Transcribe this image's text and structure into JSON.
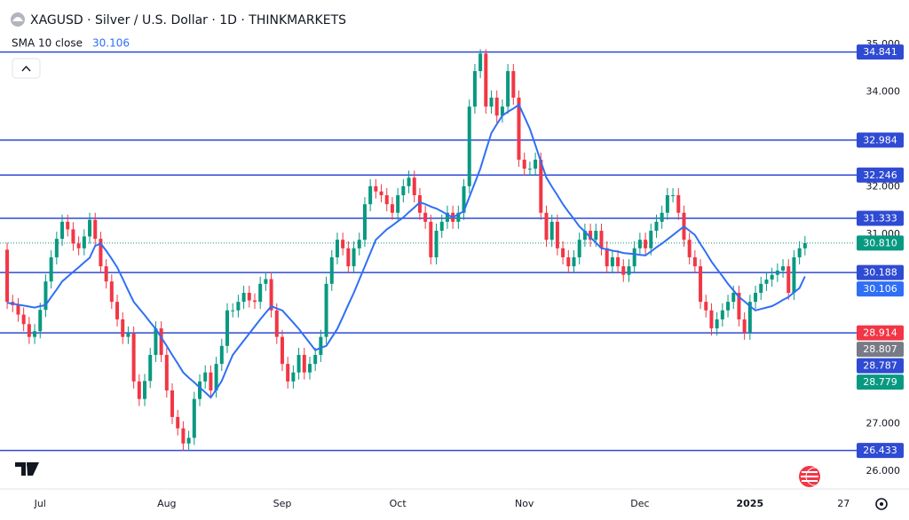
{
  "chart_data": {
    "type": "candlestick",
    "title": "XAGUSD · Silver / U.S. Dollar · 1D · THINKMARKETS",
    "indicator": {
      "name": "SMA 10 close",
      "color": "#2f6ff5",
      "values": [
        29.55,
        29.53,
        29.51,
        29.49,
        29.47,
        29.45,
        29.48,
        29.5,
        29.67,
        29.83,
        30.0,
        30.1,
        30.2,
        30.3,
        30.4,
        30.5,
        30.75,
        30.8,
        30.65,
        30.48,
        30.3,
        30.06,
        29.81,
        29.57,
        29.43,
        29.29,
        29.14,
        29.0,
        28.82,
        28.64,
        28.45,
        28.27,
        28.08,
        27.97,
        27.87,
        27.76,
        27.66,
        27.55,
        27.72,
        27.9,
        28.18,
        28.45,
        28.6,
        28.75,
        28.9,
        29.05,
        29.2,
        29.34,
        29.48,
        29.43,
        29.39,
        29.26,
        29.13,
        29.0,
        28.85,
        28.7,
        28.55,
        28.6,
        28.64,
        28.82,
        29.0,
        29.25,
        29.51,
        29.76,
        30.04,
        30.32,
        30.6,
        30.88,
        30.99,
        31.1,
        31.18,
        31.27,
        31.35,
        31.46,
        31.56,
        31.67,
        31.63,
        31.58,
        31.54,
        31.48,
        31.41,
        31.35,
        31.42,
        31.48,
        31.78,
        32.08,
        32.38,
        32.76,
        33.13,
        33.32,
        33.5,
        33.58,
        33.65,
        33.73,
        33.48,
        33.22,
        32.88,
        32.53,
        32.19,
        32.0,
        31.82,
        31.63,
        31.47,
        31.32,
        31.16,
        31.05,
        30.93,
        30.82,
        30.7,
        30.68,
        30.65,
        30.63,
        30.6,
        30.59,
        30.58,
        30.56,
        30.55,
        30.63,
        30.72,
        30.8,
        30.89,
        30.98,
        31.07,
        31.16,
        31.07,
        30.98,
        30.79,
        30.61,
        30.42,
        30.26,
        30.11,
        29.95,
        29.81,
        29.67,
        29.58,
        29.48,
        29.39,
        29.42,
        29.45,
        29.48,
        29.54,
        29.61,
        29.67,
        29.77,
        29.86,
        30.106
      ]
    },
    "up_color": "#089981",
    "down_color": "#f23645",
    "open": [
      30.67,
      29.57,
      29.5,
      29.3,
      29.1,
      28.83,
      28.95,
      29.4,
      30.0,
      30.51,
      30.9,
      31.26,
      31.1,
      30.8,
      30.7,
      30.95,
      31.3,
      30.9,
      30.32,
      30.0,
      29.57,
      29.2,
      28.83,
      28.9,
      27.89,
      27.52,
      27.9,
      28.45,
      29.01,
      28.45,
      27.7,
      27.14,
      26.9,
      26.58,
      26.7,
      27.52,
      27.89,
      28.08,
      27.7,
      28.26,
      28.64,
      29.39,
      29.39,
      29.57,
      29.76,
      29.6,
      29.57,
      29.95,
      30.05,
      29.39,
      28.83,
      28.26,
      27.89,
      28.08,
      28.45,
      28.08,
      28.26,
      28.45,
      28.83,
      29.95,
      30.51,
      30.88,
      30.7,
      30.32,
      30.7,
      30.88,
      31.63,
      32.01,
      31.9,
      31.82,
      31.63,
      31.45,
      31.82,
      32.01,
      32.19,
      31.82,
      31.45,
      31.26,
      30.51,
      31.07,
      31.26,
      31.45,
      31.26,
      31.45,
      32.01,
      33.69,
      34.44,
      34.81,
      33.69,
      33.88,
      33.5,
      33.69,
      34.44,
      33.88,
      32.57,
      32.38,
      32.38,
      32.57,
      31.45,
      30.88,
      31.26,
      30.7,
      30.51,
      30.32,
      30.51,
      30.88,
      31.07,
      30.88,
      31.07,
      30.7,
      30.32,
      30.51,
      30.32,
      30.14,
      30.32,
      30.7,
      30.88,
      30.7,
      31.07,
      31.26,
      31.45,
      31.82,
      31.82,
      31.45,
      30.88,
      30.51,
      30.32,
      29.57,
      29.39,
      29.01,
      29.2,
      29.39,
      29.57,
      29.76,
      29.2,
      28.92,
      29.57,
      29.76,
      29.95,
      30.04,
      30.14,
      30.23,
      30.32,
      29.76,
      30.51,
      30.7
    ],
    "high": [
      30.82,
      29.72,
      29.65,
      29.45,
      29.25,
      29.1,
      29.55,
      30.15,
      30.66,
      31.05,
      31.41,
      31.41,
      31.25,
      30.95,
      31.1,
      31.45,
      31.45,
      31.05,
      30.47,
      30.15,
      29.72,
      29.35,
      29.05,
      29.05,
      28.04,
      28.05,
      28.6,
      29.16,
      29.16,
      28.6,
      27.85,
      27.29,
      27.05,
      26.85,
      27.67,
      28.04,
      28.23,
      28.23,
      28.41,
      28.79,
      29.54,
      29.54,
      29.72,
      29.91,
      29.91,
      29.75,
      30.1,
      30.2,
      30.2,
      29.54,
      28.98,
      28.41,
      28.23,
      28.6,
      28.6,
      28.41,
      28.6,
      28.98,
      30.1,
      30.66,
      31.03,
      31.03,
      30.85,
      30.85,
      31.03,
      31.78,
      32.16,
      32.16,
      32.05,
      31.97,
      31.78,
      31.97,
      32.16,
      32.34,
      32.34,
      31.97,
      31.6,
      31.41,
      31.22,
      31.41,
      31.6,
      31.6,
      31.6,
      32.16,
      33.84,
      34.59,
      34.9,
      34.9,
      34.03,
      34.03,
      33.84,
      34.59,
      34.59,
      34.03,
      32.72,
      32.53,
      32.72,
      32.72,
      31.6,
      31.41,
      31.41,
      30.85,
      30.66,
      30.66,
      31.03,
      31.22,
      31.22,
      31.22,
      31.22,
      30.85,
      30.66,
      30.66,
      30.47,
      30.47,
      30.85,
      31.03,
      31.03,
      31.22,
      31.41,
      31.6,
      31.97,
      31.97,
      31.97,
      31.6,
      31.03,
      30.66,
      30.47,
      29.72,
      29.54,
      29.35,
      29.54,
      29.72,
      29.91,
      29.91,
      29.35,
      29.72,
      29.91,
      30.1,
      30.19,
      30.29,
      30.38,
      30.47,
      30.47,
      30.66,
      30.85,
      30.96
    ],
    "low": [
      29.42,
      29.35,
      29.15,
      28.95,
      28.68,
      28.68,
      28.8,
      29.25,
      29.85,
      30.36,
      30.75,
      30.95,
      30.65,
      30.55,
      30.55,
      30.8,
      30.75,
      30.17,
      29.85,
      29.42,
      29.05,
      28.68,
      28.68,
      27.74,
      27.37,
      27.37,
      27.75,
      28.3,
      28.3,
      27.55,
      26.99,
      26.75,
      26.43,
      26.43,
      26.55,
      27.37,
      27.74,
      27.55,
      27.55,
      28.11,
      28.49,
      29.24,
      29.24,
      29.42,
      29.45,
      29.42,
      29.42,
      29.8,
      29.24,
      28.68,
      28.11,
      27.74,
      27.74,
      27.93,
      27.93,
      27.93,
      28.11,
      28.3,
      28.68,
      29.8,
      30.36,
      30.55,
      30.17,
      30.17,
      30.55,
      30.73,
      31.48,
      31.75,
      31.67,
      31.48,
      31.3,
      31.3,
      31.67,
      31.86,
      31.67,
      31.3,
      31.11,
      30.36,
      30.36,
      30.92,
      31.11,
      31.11,
      31.11,
      31.3,
      31.86,
      33.54,
      34.29,
      33.54,
      33.54,
      33.35,
      33.35,
      33.54,
      33.73,
      32.42,
      32.23,
      32.23,
      32.23,
      31.3,
      30.73,
      30.73,
      30.55,
      30.36,
      30.17,
      30.17,
      30.36,
      30.73,
      30.73,
      30.73,
      30.55,
      30.17,
      30.17,
      30.17,
      29.99,
      29.99,
      30.17,
      30.55,
      30.55,
      30.55,
      30.92,
      31.11,
      31.3,
      31.67,
      31.3,
      30.73,
      30.36,
      30.17,
      29.42,
      29.24,
      28.86,
      28.86,
      29.05,
      29.24,
      29.42,
      29.05,
      28.77,
      28.77,
      29.42,
      29.61,
      29.8,
      29.89,
      29.99,
      30.08,
      29.61,
      29.61,
      30.36,
      30.55
    ],
    "close": [
      29.57,
      29.5,
      29.3,
      29.1,
      28.83,
      28.95,
      29.4,
      30.0,
      30.51,
      30.9,
      31.26,
      31.1,
      30.8,
      30.7,
      30.95,
      31.3,
      30.9,
      30.32,
      30.0,
      29.57,
      29.2,
      28.83,
      28.9,
      27.89,
      27.52,
      27.9,
      28.45,
      29.01,
      28.45,
      27.7,
      27.14,
      26.9,
      26.58,
      26.7,
      27.52,
      27.89,
      28.08,
      27.7,
      28.26,
      28.64,
      29.39,
      29.39,
      29.57,
      29.76,
      29.6,
      29.57,
      29.95,
      30.05,
      29.39,
      28.83,
      28.26,
      27.89,
      28.08,
      28.45,
      28.08,
      28.26,
      28.45,
      28.83,
      29.95,
      30.51,
      30.88,
      30.7,
      30.32,
      30.7,
      30.88,
      31.63,
      32.01,
      31.9,
      31.82,
      31.63,
      31.45,
      31.82,
      32.01,
      32.19,
      31.82,
      31.45,
      31.26,
      30.51,
      31.07,
      31.26,
      31.45,
      31.26,
      31.45,
      32.01,
      33.69,
      34.44,
      34.81,
      33.69,
      33.88,
      33.5,
      33.69,
      34.44,
      33.88,
      32.57,
      32.38,
      32.38,
      32.57,
      31.45,
      30.88,
      31.26,
      30.7,
      30.51,
      30.32,
      30.51,
      30.88,
      31.07,
      30.88,
      31.07,
      30.7,
      30.32,
      30.51,
      30.32,
      30.14,
      30.32,
      30.7,
      30.88,
      30.7,
      31.07,
      31.26,
      31.45,
      31.82,
      31.82,
      31.45,
      30.88,
      30.51,
      30.32,
      29.57,
      29.39,
      29.01,
      29.2,
      29.39,
      29.57,
      29.76,
      29.2,
      28.92,
      29.57,
      29.76,
      29.95,
      30.04,
      30.14,
      30.23,
      30.32,
      29.76,
      30.51,
      30.7,
      30.81
    ],
    "xlim": [
      -1.3,
      153.9
    ],
    "ylim": [
      25.64,
      35.94
    ],
    "grid": false,
    "xticks": [
      {
        "value": 6,
        "label": "Jul"
      },
      {
        "value": 29,
        "label": "Aug"
      },
      {
        "value": 50,
        "label": "Sep"
      },
      {
        "value": 71,
        "label": "Oct"
      },
      {
        "value": 94,
        "label": "Nov"
      },
      {
        "value": 115,
        "label": "Dec"
      },
      {
        "value": 135,
        "label": "2025",
        "bold": true
      },
      {
        "value": 152,
        "label": "27"
      }
    ],
    "yticks": [
      {
        "value": 26,
        "label": "26.000"
      },
      {
        "value": 27,
        "label": "27.000"
      },
      {
        "value": 31,
        "label": "31.000"
      },
      {
        "value": 32,
        "label": "32.000"
      },
      {
        "value": 34,
        "label": "34.000"
      },
      {
        "value": 35,
        "label": "35.000"
      }
    ],
    "hlines": [
      {
        "value": 34.841,
        "color": "#2f4bd3",
        "label_color": "#2f4bd3"
      },
      {
        "value": 32.984,
        "color": "#2f4bd3",
        "label_color": "#2f4bd3"
      },
      {
        "value": 32.246,
        "color": "#2f4bd3",
        "label_color": "#2f4bd3"
      },
      {
        "value": 31.333,
        "color": "#2f4bd3",
        "label_color": "#2f4bd3"
      },
      {
        "value": 30.188,
        "color": "#2f4bd3",
        "label_color": "#2f4bd3"
      },
      {
        "value": 28.914,
        "color": "#2f4bd3",
        "label_color": "#f23645"
      },
      {
        "value": 26.433,
        "color": "#2f4bd3",
        "label_color": "#2f4bd3"
      }
    ],
    "price_labels": [
      {
        "value": 30.81,
        "label": "30.810",
        "color": "#089981",
        "dotted_line": true
      },
      {
        "value": 30.106,
        "color": "#2f6ff5"
      },
      {
        "value": 28.807,
        "color": "#787b86"
      },
      {
        "value": 28.787,
        "color": "#2f4bd3"
      },
      {
        "value": 28.779,
        "color": "#089981"
      }
    ]
  }
}
